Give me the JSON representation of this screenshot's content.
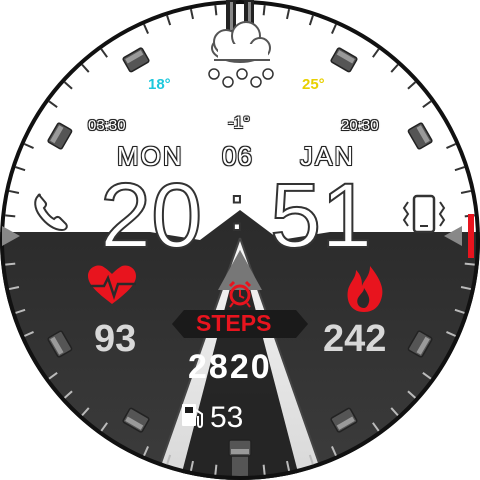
{
  "weather": {
    "icon": "snow-cloud-icon",
    "temp_low": "18°",
    "temp_high": "25°",
    "temp_now": "-1°",
    "sunrise": "03:30",
    "sunset": "20:30",
    "low_color": "#1ec8dc",
    "high_color": "#e8d000"
  },
  "date": {
    "weekday": "MON",
    "day": "06",
    "month": "JAN"
  },
  "time": {
    "hours": "20",
    "separator": ":",
    "minutes": "51"
  },
  "shortcuts": {
    "left_icon": "phone-icon",
    "right_icon": "phone-vibrate-icon"
  },
  "health": {
    "heart_rate": "93",
    "calories": "242",
    "steps_label": "STEPS",
    "steps": "2820",
    "battery": "53",
    "heart_icon": "heart-pulse-icon",
    "calorie_icon": "flame-icon",
    "alarm_icon": "alarm-clock-icon",
    "battery_icon": "fuel-pump-icon",
    "accent_color": "#e8141e"
  }
}
